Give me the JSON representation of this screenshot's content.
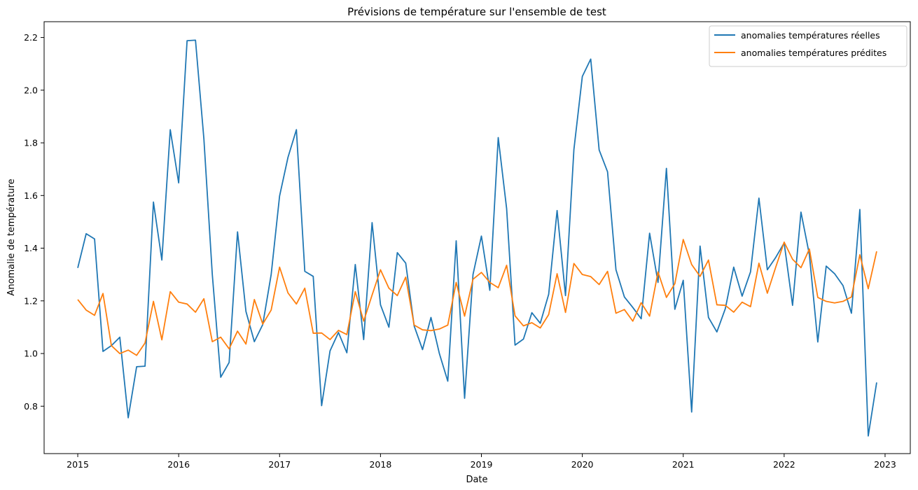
{
  "chart_data": {
    "type": "line",
    "title": "Prévisions de température sur l'ensemble de test",
    "xlabel": "Date",
    "ylabel": "Anomalie de température",
    "x_start": "2015-01",
    "x_step": "1 month",
    "x_ticks": [
      "2015",
      "2016",
      "2017",
      "2018",
      "2019",
      "2020",
      "2021",
      "2022",
      "2023"
    ],
    "y_ticks": [
      0.8,
      1.0,
      1.2,
      1.4,
      1.6,
      1.8,
      2.0,
      2.2
    ],
    "xlim": [
      "2014-09",
      "2023-04"
    ],
    "ylim": [
      0.62,
      2.26
    ],
    "grid": false,
    "legend_position": "top-right",
    "series": [
      {
        "name": "anomalies températures réelles",
        "color": "#1f77b4",
        "values": [
          1.325,
          1.455,
          1.435,
          1.008,
          1.03,
          1.062,
          0.756,
          0.95,
          0.952,
          1.575,
          1.355,
          1.85,
          1.648,
          2.188,
          2.19,
          1.815,
          1.3,
          0.91,
          0.966,
          1.462,
          1.16,
          1.045,
          1.11,
          1.3,
          1.598,
          1.745,
          1.85,
          1.312,
          1.293,
          0.802,
          1.01,
          1.08,
          1.003,
          1.338,
          1.053,
          1.497,
          1.185,
          1.1,
          1.383,
          1.343,
          1.105,
          1.015,
          1.137,
          1.0,
          0.895,
          1.428,
          0.83,
          1.3,
          1.446,
          1.24,
          1.82,
          1.55,
          1.032,
          1.055,
          1.155,
          1.115,
          1.225,
          1.543,
          1.22,
          1.775,
          2.052,
          2.118,
          1.773,
          1.69,
          1.318,
          1.215,
          1.175,
          1.132,
          1.457,
          1.27,
          1.703,
          1.168,
          1.278,
          0.778,
          1.408,
          1.137,
          1.082,
          1.17,
          1.328,
          1.218,
          1.31,
          1.59,
          1.318,
          1.365,
          1.42,
          1.183,
          1.537,
          1.375,
          1.044,
          1.332,
          1.303,
          1.258,
          1.153,
          1.547,
          0.687,
          0.89
        ]
      },
      {
        "name": "anomalies températures prédites",
        "color": "#ff7f0e",
        "values": [
          1.205,
          1.165,
          1.145,
          1.228,
          1.03,
          1.0,
          1.013,
          0.993,
          1.04,
          1.198,
          1.052,
          1.235,
          1.195,
          1.188,
          1.157,
          1.208,
          1.045,
          1.062,
          1.018,
          1.085,
          1.036,
          1.205,
          1.112,
          1.165,
          1.328,
          1.23,
          1.188,
          1.248,
          1.077,
          1.078,
          1.053,
          1.088,
          1.072,
          1.235,
          1.123,
          1.222,
          1.318,
          1.248,
          1.22,
          1.29,
          1.108,
          1.09,
          1.087,
          1.093,
          1.108,
          1.27,
          1.142,
          1.282,
          1.308,
          1.27,
          1.25,
          1.335,
          1.143,
          1.105,
          1.117,
          1.097,
          1.148,
          1.303,
          1.156,
          1.342,
          1.3,
          1.292,
          1.262,
          1.312,
          1.153,
          1.167,
          1.123,
          1.193,
          1.142,
          1.31,
          1.213,
          1.265,
          1.433,
          1.338,
          1.293,
          1.355,
          1.185,
          1.183,
          1.157,
          1.195,
          1.178,
          1.343,
          1.229,
          1.328,
          1.423,
          1.358,
          1.326,
          1.397,
          1.213,
          1.198,
          1.192,
          1.198,
          1.215,
          1.375,
          1.246,
          1.388
        ]
      }
    ]
  }
}
